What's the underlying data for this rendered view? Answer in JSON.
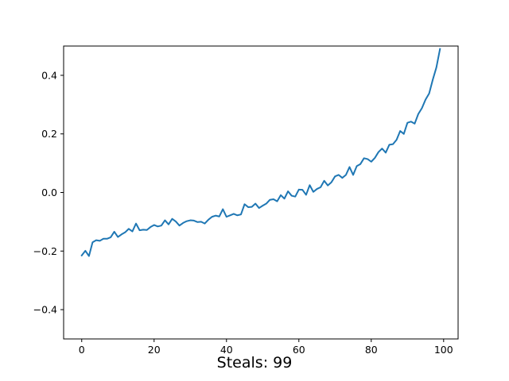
{
  "caption": {
    "label": "Steals: 99"
  },
  "chart_data": {
    "type": "line",
    "title": "",
    "xlabel": "",
    "ylabel": "",
    "xlim": [
      -5,
      104
    ],
    "ylim": [
      -0.5,
      0.5
    ],
    "xticks": [
      0,
      20,
      40,
      60,
      80,
      100
    ],
    "yticks": [
      -0.4,
      -0.2,
      0.0,
      0.2,
      0.4
    ],
    "ytick_labels": [
      "−0.4",
      "−0.2",
      "0.0",
      "0.2",
      "0.4"
    ],
    "grid": false,
    "line_color": "#1f77b4",
    "series": [
      {
        "values": [
          -0.215,
          -0.199,
          -0.217,
          -0.17,
          -0.163,
          -0.165,
          -0.158,
          -0.158,
          -0.153,
          -0.134,
          -0.152,
          -0.143,
          -0.136,
          -0.124,
          -0.133,
          -0.106,
          -0.129,
          -0.127,
          -0.128,
          -0.118,
          -0.111,
          -0.116,
          -0.113,
          -0.095,
          -0.109,
          -0.09,
          -0.099,
          -0.113,
          -0.104,
          -0.098,
          -0.095,
          -0.096,
          -0.101,
          -0.1,
          -0.106,
          -0.093,
          -0.083,
          -0.079,
          -0.082,
          -0.057,
          -0.083,
          -0.078,
          -0.073,
          -0.078,
          -0.075,
          -0.04,
          -0.05,
          -0.049,
          -0.038,
          -0.053,
          -0.045,
          -0.038,
          -0.025,
          -0.023,
          -0.03,
          -0.009,
          -0.021,
          0.004,
          -0.011,
          -0.014,
          0.01,
          0.009,
          -0.008,
          0.025,
          0.002,
          0.012,
          0.018,
          0.04,
          0.024,
          0.035,
          0.055,
          0.06,
          0.05,
          0.06,
          0.087,
          0.06,
          0.09,
          0.097,
          0.117,
          0.114,
          0.105,
          0.118,
          0.138,
          0.15,
          0.136,
          0.163,
          0.165,
          0.18,
          0.21,
          0.2,
          0.238,
          0.242,
          0.235,
          0.268,
          0.288,
          0.317,
          0.338,
          0.385,
          0.427,
          0.49
        ]
      }
    ]
  }
}
